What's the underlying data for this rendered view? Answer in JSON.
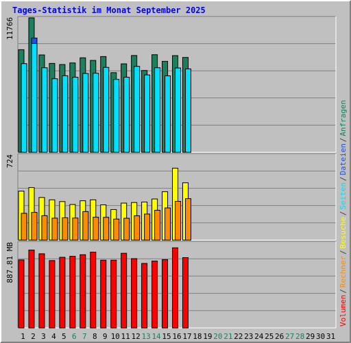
{
  "title": "Tages-Statistik im Monat September 2025",
  "chart_data": {
    "type": "bar",
    "title": "Tages-Statistik im Monat September 2025",
    "days": [
      "1",
      "2",
      "3",
      "4",
      "5",
      "6",
      "7",
      "8",
      "9",
      "10",
      "11",
      "12",
      "13",
      "14",
      "15",
      "16",
      "17",
      "18",
      "19",
      "20",
      "21",
      "22",
      "23",
      "24",
      "25",
      "26",
      "27",
      "28",
      "29",
      "30",
      "31"
    ],
    "weekend_days": [
      "6",
      "7",
      "13",
      "14",
      "20",
      "21",
      "27",
      "28"
    ],
    "panels": [
      {
        "name": "requests",
        "axis_label": "11766",
        "ylim": [
          0,
          11766
        ],
        "series": [
          {
            "name": "Anfragen",
            "color": "#1a8060",
            "values": [
              8980,
              11766,
              8520,
              7780,
              7680,
              7820,
              8270,
              8040,
              8380,
              6970,
              7740,
              8470,
              7160,
              8540,
              7960,
              8460,
              8300,
              0,
              0,
              0,
              0,
              0,
              0,
              0,
              0,
              0,
              0,
              0,
              0,
              0,
              0
            ]
          },
          {
            "name": "Dateien",
            "color": "#2050e0",
            "values": [
              6380,
              10000,
              6600,
              5720,
              6000,
              5880,
              6030,
              6070,
              6630,
              5730,
              5820,
              6450,
              5820,
              6300,
              5680,
              6260,
              6400,
              0,
              0,
              0,
              0,
              0,
              0,
              0,
              0,
              0,
              0,
              0,
              0,
              0,
              0
            ]
          },
          {
            "name": "Seiten",
            "color": "#00e0ff",
            "values": [
              7760,
              9520,
              7400,
              6440,
              6700,
              6570,
              6900,
              6920,
              7430,
              6380,
              6570,
              7520,
              6770,
              7400,
              6690,
              7380,
              7300,
              0,
              0,
              0,
              0,
              0,
              0,
              0,
              0,
              0,
              0,
              0,
              0,
              0,
              0
            ]
          }
        ]
      },
      {
        "name": "visits",
        "axis_label": "724",
        "ylim": [
          0,
          724
        ],
        "series": [
          {
            "name": "Besuche",
            "color": "#ffff00",
            "values": [
              417,
              447,
              363,
              343,
              328,
              303,
              335,
              343,
              300,
              260,
              315,
              320,
              324,
              350,
              412,
              612,
              488,
              0,
              0,
              0,
              0,
              0,
              0,
              0,
              0,
              0,
              0,
              0,
              0,
              0,
              0
            ]
          },
          {
            "name": "Rechner",
            "color": "#ff8c00",
            "values": [
              228,
              236,
              208,
              187,
              190,
              188,
              243,
              195,
              194,
              179,
              186,
              207,
              222,
              254,
              274,
              330,
              353,
              0,
              0,
              0,
              0,
              0,
              0,
              0,
              0,
              0,
              0,
              0,
              0,
              0,
              0
            ]
          }
        ]
      },
      {
        "name": "volume",
        "axis_label": "887.81 MB",
        "ylim": [
          0,
          887.81
        ],
        "series": [
          {
            "name": "Volumen",
            "color": "#ff0000",
            "values": [
              710,
              813,
              774,
              703,
              737,
              748,
              764,
              791,
              707,
              707,
              779,
              723,
              673,
              698,
              713,
              836,
              734,
              0,
              0,
              0,
              0,
              0,
              0,
              0,
              0,
              0,
              0,
              0,
              0,
              0,
              0
            ]
          }
        ]
      }
    ],
    "legend": {
      "placement": "right-vertical",
      "items": [
        {
          "text": "Volumen",
          "color": "#ff0000"
        },
        {
          "text": "/",
          "color": "#404040"
        },
        {
          "text": "Rechner",
          "color": "#ff8c00"
        },
        {
          "text": "/",
          "color": "#404040"
        },
        {
          "text": "Besuche",
          "color": "#ffff00"
        },
        {
          "text": "/",
          "color": "#404040"
        },
        {
          "text": "Seiten",
          "color": "#00e0ff"
        },
        {
          "text": "/",
          "color": "#404040"
        },
        {
          "text": "Dateien",
          "color": "#2050e0"
        },
        {
          "text": "/",
          "color": "#404040"
        },
        {
          "text": "Anfragen",
          "color": "#1a8060"
        }
      ]
    },
    "grid": true
  }
}
